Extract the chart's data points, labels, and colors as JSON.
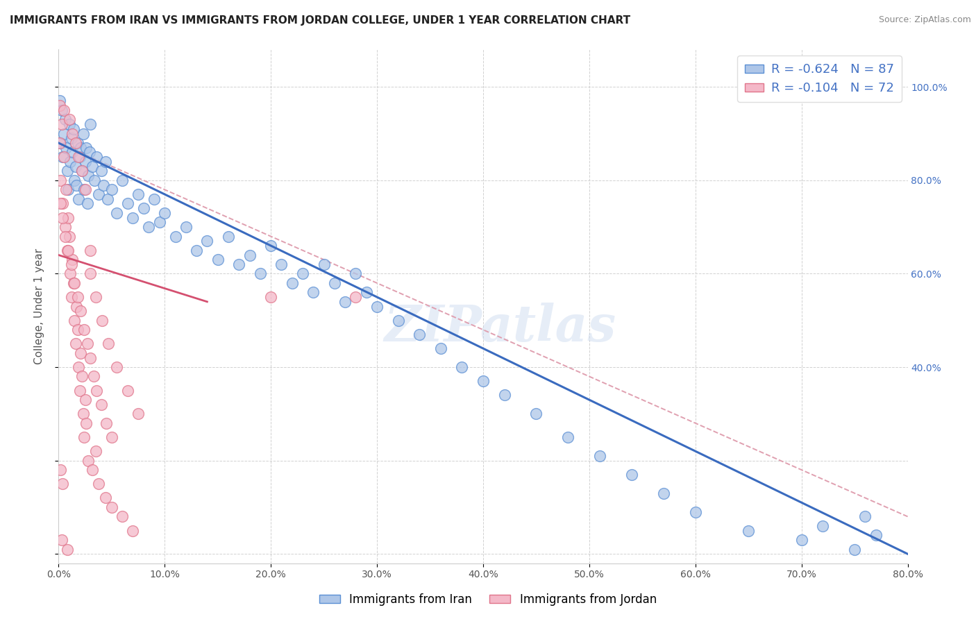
{
  "title": "IMMIGRANTS FROM IRAN VS IMMIGRANTS FROM JORDAN COLLEGE, UNDER 1 YEAR CORRELATION CHART",
  "source": "Source: ZipAtlas.com",
  "ylabel": "College, Under 1 year",
  "legend_iran_R": "R = -0.624",
  "legend_iran_N": "N = 87",
  "legend_jordan_R": "R = -0.104",
  "legend_jordan_N": "N = 72",
  "iran_color": "#aec6e8",
  "jordan_color": "#f4b8c8",
  "iran_edge_color": "#5b8fd4",
  "jordan_edge_color": "#e0748a",
  "iran_line_color": "#3a6bbf",
  "jordan_line_color": "#d45070",
  "jordan_dashed_color": "#e0a0b0",
  "watermark_text": "ZIPatlas",
  "background_color": "#ffffff",
  "grid_color": "#cccccc",
  "xlim": [
    0.0,
    0.8
  ],
  "ylim": [
    -0.02,
    1.08
  ],
  "iran_trend": [
    0.0,
    0.88,
    0.8,
    0.0
  ],
  "jordan_solid_trend": [
    0.0,
    0.64,
    0.14,
    0.54
  ],
  "jordan_dashed_trend": [
    0.0,
    0.88,
    0.8,
    0.08
  ],
  "iran_scatter_x": [
    0.001,
    0.002,
    0.003,
    0.004,
    0.005,
    0.006,
    0.007,
    0.008,
    0.009,
    0.01,
    0.011,
    0.012,
    0.013,
    0.014,
    0.015,
    0.016,
    0.017,
    0.018,
    0.019,
    0.02,
    0.021,
    0.022,
    0.023,
    0.024,
    0.025,
    0.026,
    0.027,
    0.028,
    0.029,
    0.03,
    0.032,
    0.034,
    0.036,
    0.038,
    0.04,
    0.042,
    0.044,
    0.046,
    0.05,
    0.055,
    0.06,
    0.065,
    0.07,
    0.075,
    0.08,
    0.085,
    0.09,
    0.095,
    0.1,
    0.11,
    0.12,
    0.13,
    0.14,
    0.15,
    0.16,
    0.17,
    0.18,
    0.19,
    0.2,
    0.21,
    0.22,
    0.23,
    0.24,
    0.25,
    0.26,
    0.27,
    0.28,
    0.29,
    0.3,
    0.32,
    0.34,
    0.36,
    0.38,
    0.4,
    0.42,
    0.45,
    0.48,
    0.51,
    0.54,
    0.57,
    0.6,
    0.65,
    0.7,
    0.72,
    0.75,
    0.76,
    0.77
  ],
  "iran_scatter_y": [
    0.97,
    0.88,
    0.95,
    0.85,
    0.9,
    0.93,
    0.87,
    0.82,
    0.78,
    0.92,
    0.84,
    0.89,
    0.86,
    0.91,
    0.8,
    0.83,
    0.79,
    0.88,
    0.76,
    0.85,
    0.87,
    0.82,
    0.9,
    0.78,
    0.84,
    0.87,
    0.75,
    0.81,
    0.86,
    0.92,
    0.83,
    0.8,
    0.85,
    0.77,
    0.82,
    0.79,
    0.84,
    0.76,
    0.78,
    0.73,
    0.8,
    0.75,
    0.72,
    0.77,
    0.74,
    0.7,
    0.76,
    0.71,
    0.73,
    0.68,
    0.7,
    0.65,
    0.67,
    0.63,
    0.68,
    0.62,
    0.64,
    0.6,
    0.66,
    0.62,
    0.58,
    0.6,
    0.56,
    0.62,
    0.58,
    0.54,
    0.6,
    0.56,
    0.53,
    0.5,
    0.47,
    0.44,
    0.4,
    0.37,
    0.34,
    0.3,
    0.25,
    0.21,
    0.17,
    0.13,
    0.09,
    0.05,
    0.03,
    0.06,
    0.01,
    0.08,
    0.04
  ],
  "jordan_scatter_x": [
    0.001,
    0.002,
    0.003,
    0.004,
    0.005,
    0.006,
    0.007,
    0.008,
    0.009,
    0.01,
    0.011,
    0.012,
    0.013,
    0.014,
    0.015,
    0.016,
    0.017,
    0.018,
    0.019,
    0.02,
    0.021,
    0.022,
    0.023,
    0.024,
    0.025,
    0.026,
    0.028,
    0.03,
    0.032,
    0.035,
    0.038,
    0.041,
    0.044,
    0.047,
    0.05,
    0.055,
    0.06,
    0.065,
    0.07,
    0.075,
    0.001,
    0.003,
    0.005,
    0.008,
    0.01,
    0.013,
    0.016,
    0.019,
    0.022,
    0.025,
    0.002,
    0.004,
    0.006,
    0.009,
    0.012,
    0.015,
    0.018,
    0.021,
    0.024,
    0.027,
    0.03,
    0.033,
    0.036,
    0.04,
    0.045,
    0.05,
    0.03,
    0.2,
    0.28,
    0.035,
    0.002,
    0.004
  ],
  "jordan_scatter_y": [
    0.88,
    0.8,
    0.92,
    0.75,
    0.85,
    0.7,
    0.78,
    0.65,
    0.72,
    0.68,
    0.6,
    0.55,
    0.63,
    0.58,
    0.5,
    0.45,
    0.53,
    0.48,
    0.4,
    0.35,
    0.43,
    0.38,
    0.3,
    0.25,
    0.33,
    0.28,
    0.2,
    0.6,
    0.18,
    0.55,
    0.15,
    0.5,
    0.12,
    0.45,
    0.1,
    0.4,
    0.08,
    0.35,
    0.05,
    0.3,
    0.96,
    0.03,
    0.95,
    0.01,
    0.93,
    0.9,
    0.88,
    0.85,
    0.82,
    0.78,
    0.75,
    0.72,
    0.68,
    0.65,
    0.62,
    0.58,
    0.55,
    0.52,
    0.48,
    0.45,
    0.42,
    0.38,
    0.35,
    0.32,
    0.28,
    0.25,
    0.65,
    0.55,
    0.55,
    0.22,
    0.18,
    0.15
  ]
}
